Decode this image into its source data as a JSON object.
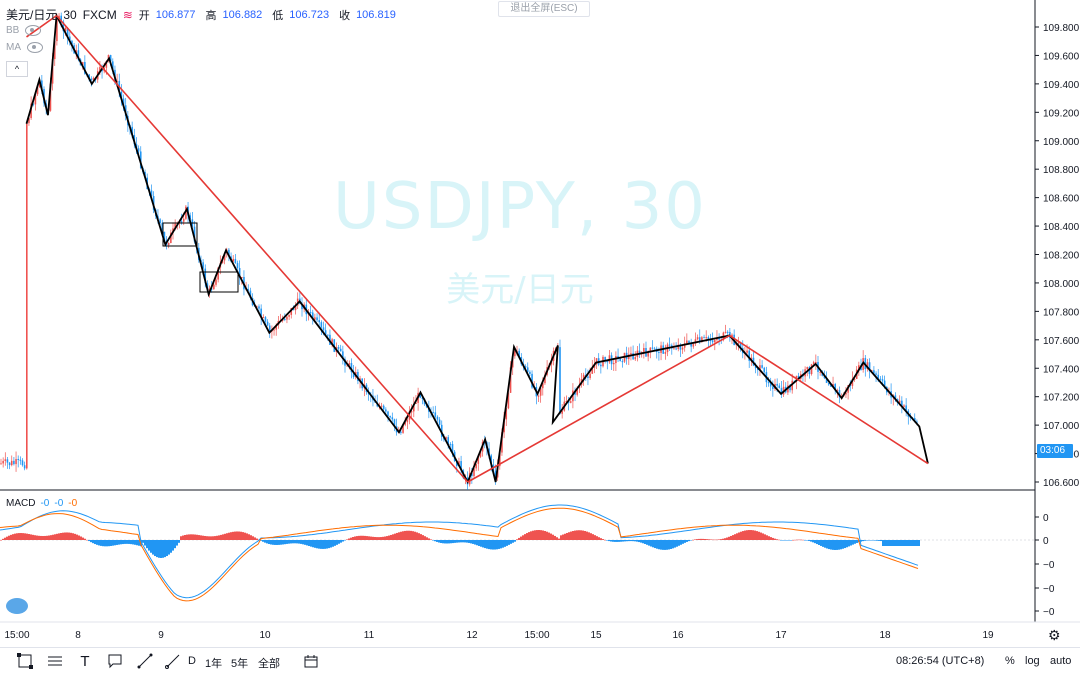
{
  "legend": {
    "symbol": "美元/日元",
    "interval": "30",
    "exchange": "FXCM",
    "open_label": "开",
    "open": "106.877",
    "high_label": "高",
    "high": "106.882",
    "low_label": "低",
    "low": "106.723",
    "close_label": "收",
    "close": "106.819",
    "ind1": "BB",
    "ind2": "MA"
  },
  "collapse_label": "^",
  "exit_fullscreen": "退出全屏(ESC)",
  "watermark": {
    "main": "USDJPY, 30",
    "sub": "美元/日元"
  },
  "price_axis": [
    "109.800",
    "109.600",
    "109.400",
    "109.200",
    "109.000",
    "108.800",
    "108.600",
    "108.400",
    "108.200",
    "108.000",
    "107.800",
    "107.600",
    "107.400",
    "107.200",
    "107.000",
    "106.800",
    "106.600"
  ],
  "last_price": "03:06",
  "macd_legend": {
    "name": "MACD",
    "v1": "-0",
    "v2": "-0",
    "v3": "-0"
  },
  "macd_axis": [
    "0",
    "0",
    "−0",
    "−0",
    "−0"
  ],
  "time_axis": [
    "15:00",
    "8",
    "9",
    "10",
    "11",
    "12",
    "15:00",
    "15",
    "16",
    "17",
    "18",
    "19"
  ],
  "toolbar": {
    "timeframes": [
      "D",
      "1年",
      "5年",
      "全部"
    ],
    "clock": "08:26:54 (UTC+8)",
    "percent": "%",
    "log": "log",
    "auto": "auto"
  },
  "colors": {
    "up": "#ef5350",
    "down": "#2196f3",
    "zigzag": "#000000",
    "trend": "#e53935",
    "watermark": "#d8f4f8"
  },
  "chart_data": {
    "type": "line",
    "title": "USDJPY, 30",
    "price_range": [
      106.55,
      109.9
    ],
    "zigzag_black": [
      [
        "7 12:00",
        109.12
      ],
      [
        "7 15:00",
        109.43
      ],
      [
        "7 17:00",
        109.18
      ],
      [
        "7 19:00",
        109.88
      ],
      [
        "8 04:00",
        109.4
      ],
      [
        "8 09:00",
        109.58
      ],
      [
        "9 01:00",
        108.27
      ],
      [
        "9 06:00",
        108.52
      ],
      [
        "9 11:00",
        107.92
      ],
      [
        "9 15:00",
        108.23
      ],
      [
        "10 01:00",
        107.65
      ],
      [
        "10 08:00",
        107.87
      ],
      [
        "11 07:00",
        106.95
      ],
      [
        "11 12:00",
        107.23
      ],
      [
        "11 23:00",
        106.6
      ],
      [
        "12 05:00",
        106.9
      ],
      [
        "12 09:00",
        106.6
      ],
      [
        "12 16:00",
        107.55
      ],
      [
        "13 01:00",
        107.22
      ],
      [
        "13 09:00",
        107.56
      ],
      [
        "14 07:00",
        107.02
      ],
      [
        "15 00:00",
        107.44
      ],
      [
        "16 12:00",
        107.63
      ],
      [
        "17 00:00",
        107.22
      ],
      [
        "17 08:00",
        107.43
      ],
      [
        "17 14:00",
        107.19
      ],
      [
        "17 19:00",
        107.44
      ],
      [
        "18 08:00",
        106.99
      ],
      [
        "18 10:00",
        106.73
      ]
    ],
    "trendlines_red": [
      [
        [
          "7 12:00",
          109.73
        ],
        [
          "7 19:00",
          109.88
        ]
      ],
      [
        [
          "7 19:00",
          109.88
        ],
        [
          "11 23:00",
          106.6
        ]
      ],
      [
        [
          "11 23:00",
          106.6
        ],
        [
          "16 12:00",
          107.63
        ]
      ],
      [
        [
          "16 12:00",
          107.63
        ],
        [
          "18 10:00",
          106.73
        ]
      ]
    ],
    "macd_histogram_range": [
      -1,
      1
    ]
  }
}
